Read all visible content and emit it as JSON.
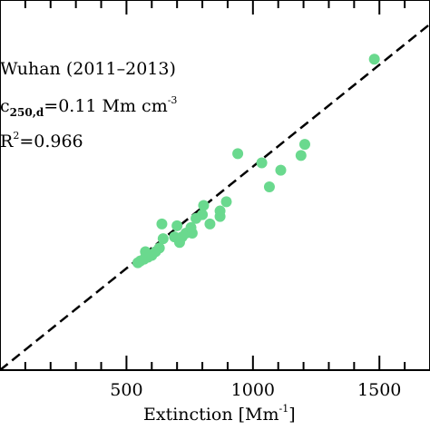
{
  "chart_data": {
    "type": "scatter",
    "xlabel": "Extinction [Mm",
    "xlabel_sup": "-1",
    "xlabel_end": "]",
    "x_ticks": [
      500,
      1000,
      1500
    ],
    "xlim": [
      0,
      1700
    ],
    "ylim": [
      0,
      200
    ],
    "annotations": {
      "site": "Wuhan (2011–2013)",
      "coef_main": "c",
      "coef_sub": "250,d",
      "coef_value": "=0.11 Mm cm",
      "coef_sup": "-3",
      "r2_main": "R",
      "r2_sup": "2",
      "r2_value": "=0.966"
    },
    "point_color": "#6ad98e",
    "fit_line": {
      "slope": 0.11,
      "intercept": 0,
      "style": "dashed"
    },
    "points": [
      [
        545,
        58
      ],
      [
        555,
        59
      ],
      [
        570,
        60
      ],
      [
        585,
        61
      ],
      [
        600,
        62
      ],
      [
        575,
        64
      ],
      [
        615,
        64
      ],
      [
        630,
        66
      ],
      [
        645,
        71
      ],
      [
        640,
        79
      ],
      [
        690,
        72
      ],
      [
        700,
        78
      ],
      [
        710,
        69
      ],
      [
        720,
        72
      ],
      [
        735,
        74
      ],
      [
        760,
        74
      ],
      [
        755,
        77
      ],
      [
        775,
        82
      ],
      [
        800,
        84
      ],
      [
        805,
        89
      ],
      [
        830,
        79
      ],
      [
        870,
        83
      ],
      [
        870,
        86
      ],
      [
        895,
        91
      ],
      [
        940,
        117
      ],
      [
        1035,
        112
      ],
      [
        1065,
        99
      ],
      [
        1110,
        108
      ],
      [
        1190,
        116
      ],
      [
        1205,
        122
      ],
      [
        1480,
        168
      ]
    ]
  }
}
